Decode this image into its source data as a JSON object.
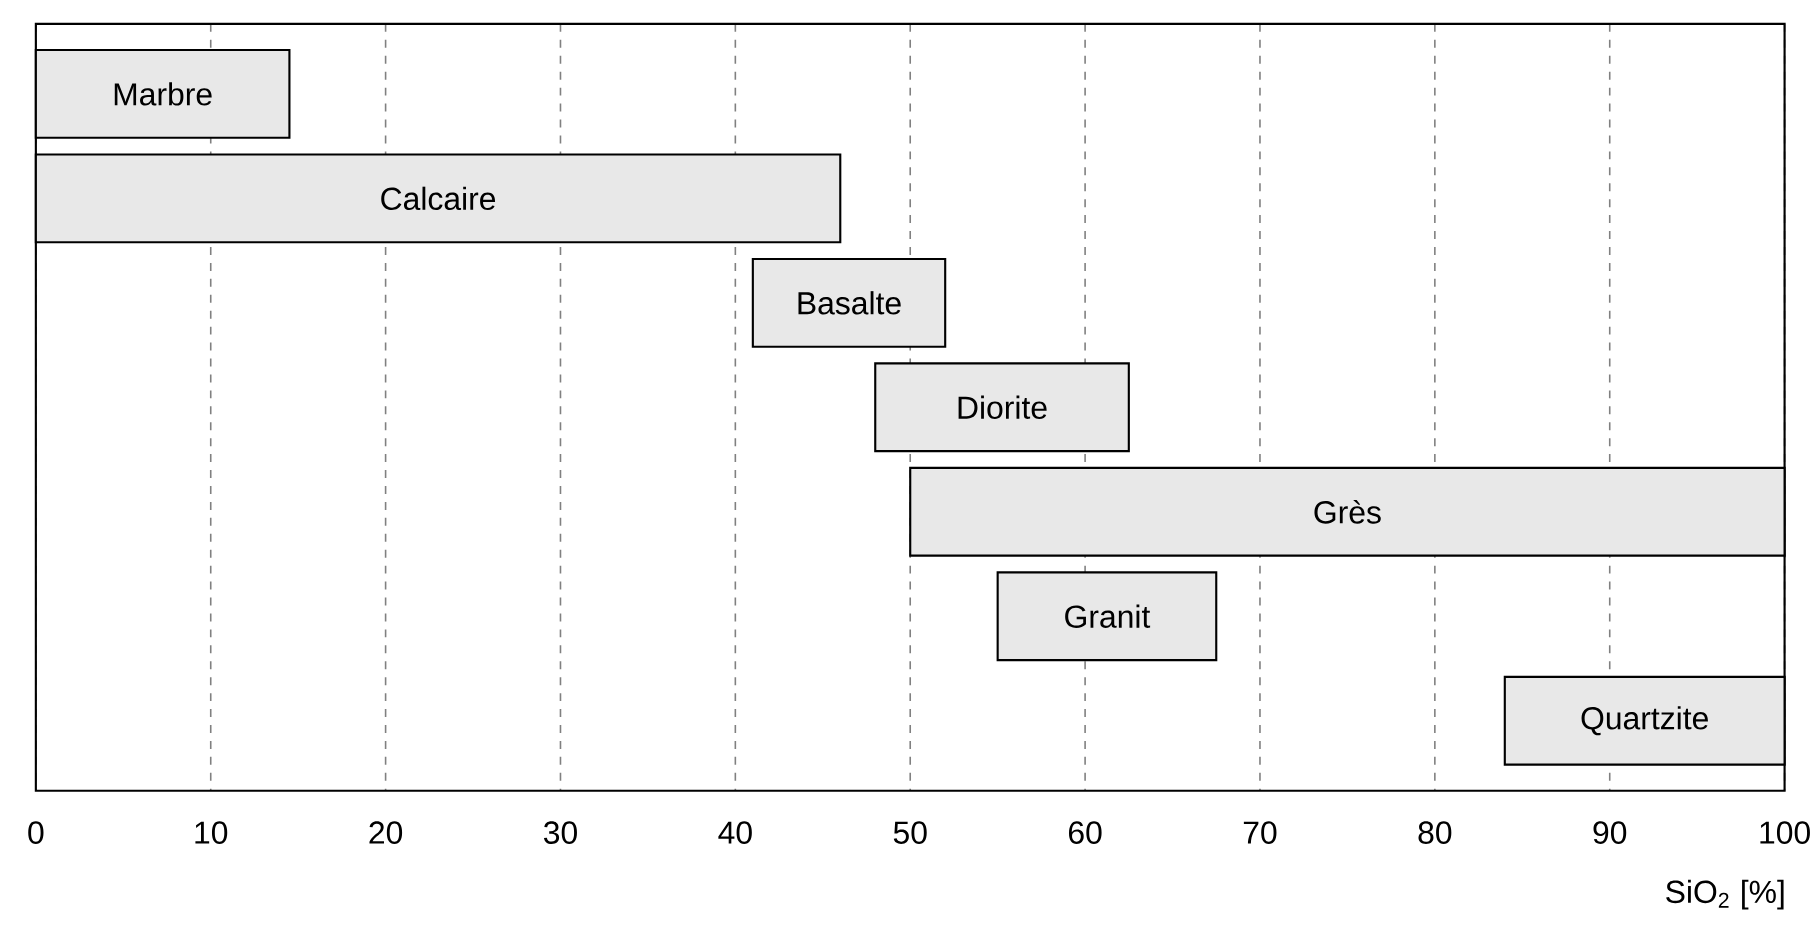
{
  "chart_data": {
    "type": "bar",
    "orientation": "horizontal",
    "categories": [
      "Marbre",
      "Calcaire",
      "Basalte",
      "Diorite",
      "Grès",
      "Granit",
      "Quartzite"
    ],
    "base": [
      0,
      0,
      41,
      48,
      50,
      55,
      84
    ],
    "values": [
      14.5,
      46,
      11,
      14.5,
      50,
      12.5,
      16
    ],
    "color": "#e8e8e8",
    "xlabel": "SiO$_{2}$ [%]",
    "xlim": [
      0,
      100
    ],
    "xticks": [
      0,
      10,
      20,
      30,
      40,
      50,
      60,
      70,
      80,
      90,
      100
    ],
    "grid": "x"
  }
}
